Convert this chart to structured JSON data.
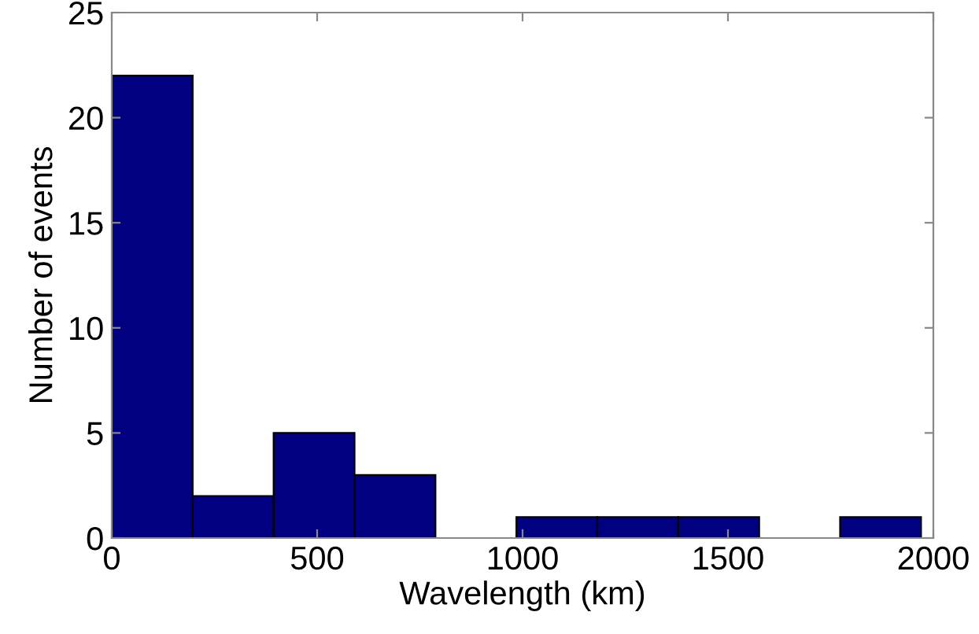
{
  "chart_data": {
    "type": "histogram",
    "xlabel": "Wavelength (km)",
    "ylabel": "Number of events",
    "bins": [
      0,
      197,
      394,
      591,
      788,
      985,
      1182,
      1379,
      1576,
      1773,
      1970
    ],
    "values": [
      22,
      2,
      5,
      3,
      0,
      1,
      1,
      1,
      0,
      1
    ],
    "color": "#000080",
    "xlim": [
      0,
      2000
    ],
    "xticks": [
      0,
      500,
      1000,
      1500,
      2000
    ],
    "ylim": [
      0,
      25
    ],
    "yticks": [
      0,
      5,
      10,
      15,
      20,
      25
    ],
    "grid": false
  }
}
